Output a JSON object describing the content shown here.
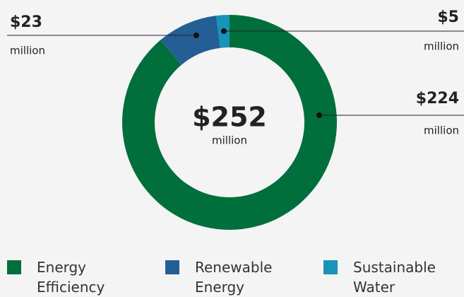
{
  "chart_data": {
    "type": "donut",
    "categories": [
      "Energy Efficiency",
      "Renewable Energy",
      "Sustainable Water"
    ],
    "values": [
      224,
      23,
      5
    ],
    "value_labels": [
      "$224",
      "$23",
      "$5"
    ],
    "unit": "million",
    "colors": [
      "#006f3c",
      "#235f94",
      "#1893b9"
    ],
    "center_label": "$252",
    "center_sublabel": "million",
    "legend": "bottom"
  }
}
